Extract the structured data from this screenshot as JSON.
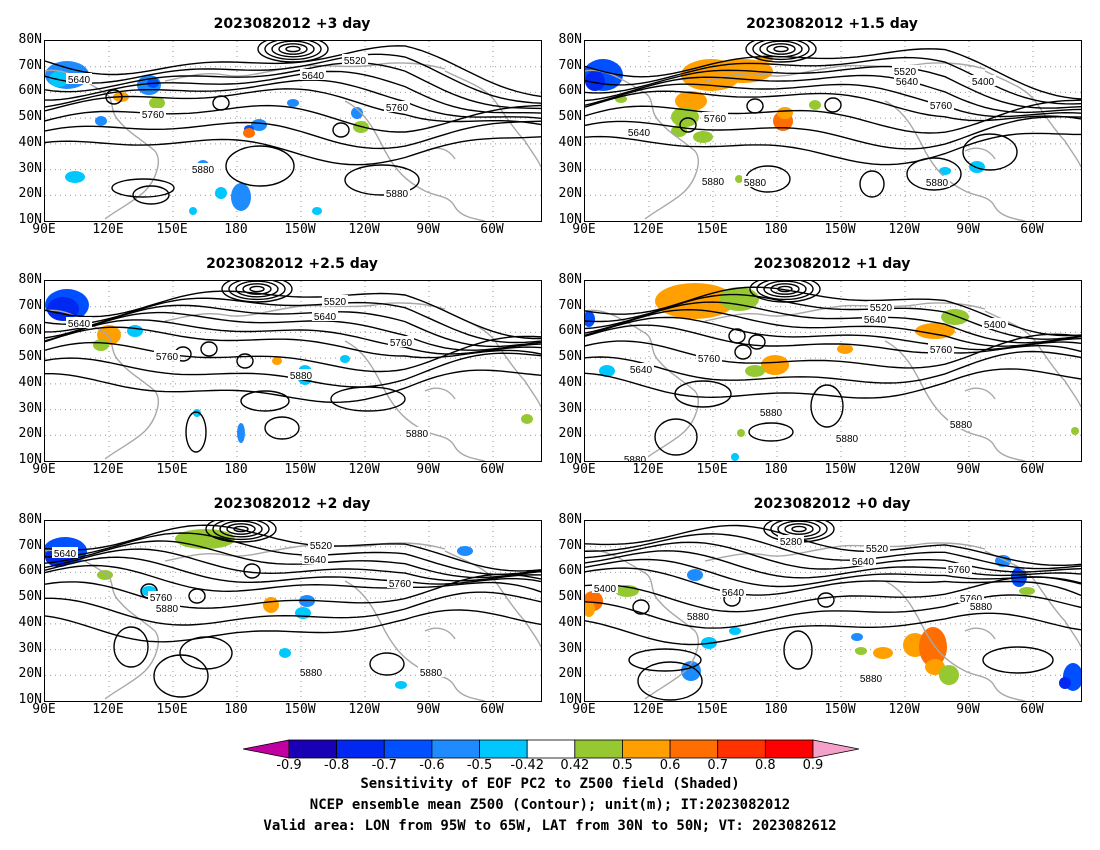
{
  "panels": [
    {
      "title": "2023082012  +3 day",
      "labels": [
        "5520",
        "5640",
        "5640",
        "5760",
        "5760",
        "5880",
        "5880"
      ]
    },
    {
      "title": "2023082012  +1.5 day",
      "labels": [
        "5520",
        "5640",
        "5400",
        "5640",
        "5760",
        "5760",
        "5880",
        "5880",
        "5880"
      ]
    },
    {
      "title": "2023082012  +2.5 day",
      "labels": [
        "5520",
        "5640",
        "5640",
        "5760",
        "5760",
        "5880",
        "5880"
      ]
    },
    {
      "title": "2023082012  +1 day",
      "labels": [
        "5520",
        "5640",
        "5400",
        "5640",
        "5760",
        "5760",
        "5880",
        "5880",
        "5880",
        "5880"
      ]
    },
    {
      "title": "2023082012  +2 day",
      "labels": [
        "5520",
        "5640",
        "5640",
        "5760",
        "5760",
        "5880",
        "5880",
        "5880"
      ]
    },
    {
      "title": "2023082012  +0 day",
      "labels": [
        "5280",
        "5520",
        "5640",
        "5400",
        "5640",
        "5760",
        "5760",
        "5880",
        "5880",
        "5880"
      ]
    }
  ],
  "lat_ticks": [
    "80N",
    "70N",
    "60N",
    "50N",
    "40N",
    "30N",
    "20N",
    "10N"
  ],
  "lon_ticks": [
    "90E",
    "120E",
    "150E",
    "180",
    "150W",
    "120W",
    "90W",
    "60W"
  ],
  "colorbar": {
    "ticks": [
      "-0.9",
      "-0.8",
      "-0.7",
      "-0.6",
      "-0.5",
      "-0.42",
      "0.42",
      "0.5",
      "0.6",
      "0.7",
      "0.8",
      "0.9"
    ],
    "colors": [
      "#c000a0",
      "#1a00b4",
      "#0028f0",
      "#0050ff",
      "#1e8cff",
      "#00c8ff",
      "#ffffff",
      "#96c832",
      "#ffa000",
      "#ff6e00",
      "#ff3200",
      "#ff0000",
      "#f5a0c8"
    ]
  },
  "caption": {
    "line1": "Sensitivity of EOF PC2 to Z500 field (Shaded)",
    "line2": "NCEP ensemble mean Z500 (Contour); unit(m); IT:2023082012",
    "line3": "Valid area: LON from 95W to 65W, LAT from 30N to 50N; VT: 2023082612"
  }
}
